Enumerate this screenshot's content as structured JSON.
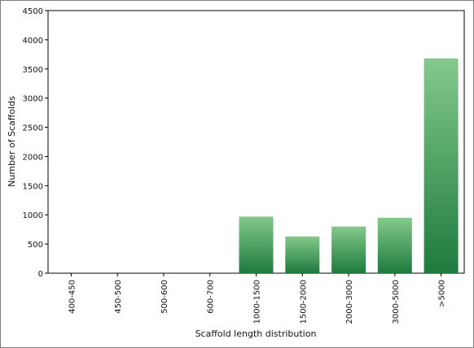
{
  "chart_data": {
    "type": "bar",
    "title": "",
    "xlabel": "Scaffold length distribution",
    "ylabel": "Number of Scaffolds",
    "categories": [
      "400-450",
      "450-500",
      "500-600",
      "600-700",
      "1000-1500",
      "1500-2000",
      "2000-3000",
      "3000-5000",
      ">5000"
    ],
    "values": [
      0,
      0,
      0,
      0,
      970,
      630,
      800,
      950,
      3680
    ],
    "ylim": [
      0,
      4500
    ],
    "yticks": [
      "0",
      "500",
      "1000",
      "1500",
      "2000",
      "2500",
      "3000",
      "3500",
      "4000",
      "4500"
    ],
    "grid": false,
    "legend": "none",
    "colors": {
      "bar_top": "#84c98c",
      "bar_bottom": "#1e7a3e",
      "axis": "#000000"
    }
  }
}
